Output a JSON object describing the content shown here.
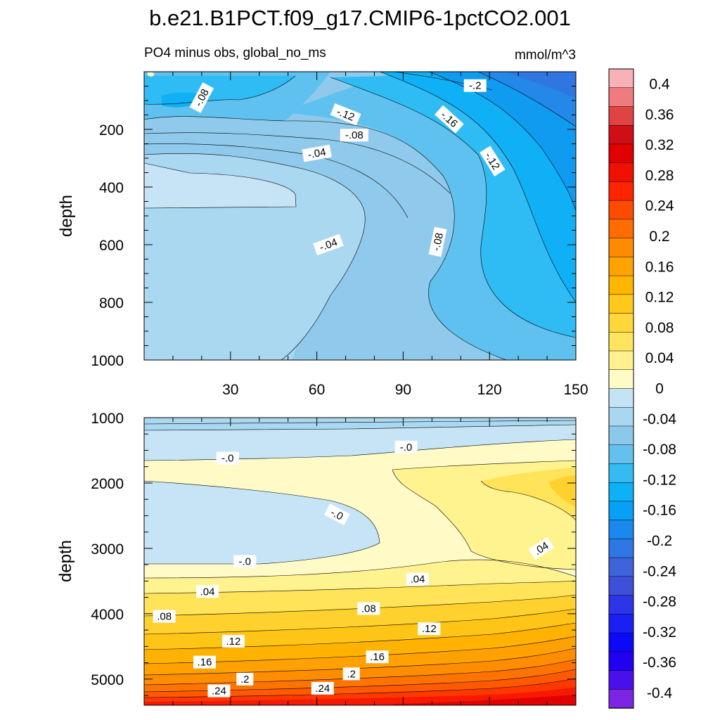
{
  "chart_data": [
    {
      "type": "heatmap",
      "panel": "upper",
      "title": "b.e21.B1PCT.f09_g17.CMIP6-1pctCO2.001",
      "subtitle_left": "PO4 minus obs, global_no_ms",
      "subtitle_right": "mmol/m^3",
      "xlabel": "",
      "ylabel": "depth",
      "xlim": [
        0,
        150
      ],
      "ylim": [
        1000,
        0
      ],
      "xticks": [
        30,
        60,
        90,
        120,
        150
      ],
      "xtick_labels": [
        "30",
        "60",
        "90",
        "120",
        "150"
      ],
      "yticks": [
        200,
        400,
        600,
        800,
        1000
      ],
      "ytick_labels": [
        "200",
        "400",
        "600",
        "800",
        "1000"
      ],
      "contour_labels": [
        {
          "text": "-.08",
          "x": 20,
          "y": 90,
          "rot": -62
        },
        {
          "text": "-.2",
          "x": 115,
          "y": 48,
          "rot": 0
        },
        {
          "text": "-.12",
          "x": 70,
          "y": 148,
          "rot": 22
        },
        {
          "text": "-.16",
          "x": 106,
          "y": 165,
          "rot": 42
        },
        {
          "text": "-.08",
          "x": 73,
          "y": 220,
          "rot": 0
        },
        {
          "text": "-.04",
          "x": 60,
          "y": 283,
          "rot": -10
        },
        {
          "text": "-.12",
          "x": 121,
          "y": 310,
          "rot": 58
        },
        {
          "text": "-.04",
          "x": 64,
          "y": 600,
          "rot": -20
        },
        {
          "text": "-.08",
          "x": 102,
          "y": 590,
          "rot": -78
        }
      ]
    },
    {
      "type": "heatmap",
      "panel": "lower",
      "xlabel": "",
      "ylabel": "depth",
      "xlim": [
        0,
        150
      ],
      "ylim": [
        5400,
        1000
      ],
      "yticks": [
        1000,
        2000,
        3000,
        4000,
        5000
      ],
      "ytick_labels": [
        "1000",
        "2000",
        "3000",
        "4000",
        "5000"
      ],
      "contour_labels": [
        {
          "text": "-.0",
          "x": 29,
          "y": 1620,
          "rot": 0
        },
        {
          "text": "-.0",
          "x": 91,
          "y": 1450,
          "rot": 0
        },
        {
          "text": "-.0",
          "x": 67,
          "y": 2480,
          "rot": 28
        },
        {
          "text": "-.0",
          "x": 35,
          "y": 3200,
          "rot": 0
        },
        {
          "text": ".04",
          "x": 138,
          "y": 3000,
          "rot": -32
        },
        {
          "text": ".04",
          "x": 22,
          "y": 3660,
          "rot": 0
        },
        {
          "text": ".04",
          "x": 95,
          "y": 3470,
          "rot": 0
        },
        {
          "text": ".08",
          "x": 7,
          "y": 4040,
          "rot": 0
        },
        {
          "text": ".08",
          "x": 78,
          "y": 3920,
          "rot": 0
        },
        {
          "text": ".12",
          "x": 31,
          "y": 4420,
          "rot": 0
        },
        {
          "text": ".12",
          "x": 99,
          "y": 4230,
          "rot": 0
        },
        {
          "text": ".16",
          "x": 21,
          "y": 4740,
          "rot": 0
        },
        {
          "text": ".16",
          "x": 81,
          "y": 4660,
          "rot": 0
        },
        {
          "text": ".2",
          "x": 35,
          "y": 5000,
          "rot": 0
        },
        {
          "text": ".2",
          "x": 72,
          "y": 4920,
          "rot": 0
        },
        {
          "text": ".24",
          "x": 26,
          "y": 5180,
          "rot": 0
        },
        {
          "text": ".24",
          "x": 62,
          "y": 5140,
          "rot": 0
        }
      ]
    }
  ],
  "colorbar": {
    "labels": [
      "0.4",
      "0.36",
      "0.32",
      "0.28",
      "0.24",
      "0.2",
      "0.16",
      "0.12",
      "0.08",
      "0.04",
      "0",
      "-0.04",
      "-0.08",
      "-0.12",
      "-0.16",
      "-0.2",
      "-0.24",
      "-0.28",
      "-0.32",
      "-0.36",
      "-0.4"
    ],
    "colors": [
      "#f9b1b8",
      "#ef7b7e",
      "#df4442",
      "#cf0f16",
      "#e00000",
      "#f01000",
      "#ff2400",
      "#ff4b00",
      "#ff6c00",
      "#ff8c00",
      "#ffa300",
      "#ffb600",
      "#ffc81a",
      "#ffd73b",
      "#ffe45e",
      "#fff090",
      "#fffbc5",
      "#c4e4f5",
      "#a8d7f0",
      "#8bc9eb",
      "#66c0ee",
      "#34bbf2",
      "#0db1f6",
      "#08a0f4",
      "#1a88ec",
      "#2f77e4",
      "#3e63da",
      "#3e50d8",
      "#2c36e8",
      "#1a20f4",
      "#0a0af8",
      "#2200f0",
      "#4810ea",
      "#7a26e4"
    ],
    "color_levels": [
      "0.42",
      "0.39",
      "0.37",
      "0.35",
      "0.33",
      "0.31",
      "0.29",
      "0.27",
      "0.25",
      "0.23",
      "0.21",
      "0.19",
      "0.17",
      "0.15",
      "0.13",
      "0.11",
      "0.09",
      "0.07",
      "0.05",
      "0.03",
      "0.01",
      "-0.01",
      "-0.03",
      "-0.05",
      "-0.07",
      "-0.09",
      "-0.11",
      "-0.13",
      "-0.15",
      "-0.17",
      "-0.19",
      "-0.21",
      "-0.23",
      "-0.25"
    ]
  },
  "fill_colors": {
    "neg02": "#c6e4f6",
    "neg06": "#a9d8f0",
    "neg07": "#8fcaec",
    "neg10": "#5fc1ef",
    "neg12": "#2fbbf3",
    "neg14": "#10b0f6",
    "neg16": "#0f9bef",
    "neg18": "#2388e8",
    "neg20": "#2f76e2",
    "neg22": "#3b62d8",
    "pos01": "#fffac6",
    "pos03": "#fff38f",
    "pos05": "#ffe358",
    "pos07": "#ffd12f",
    "pos09": "#ffc516",
    "pos11": "#ffb300",
    "pos13": "#ffa100",
    "pos15": "#ff8d00",
    "pos17": "#ff7300",
    "pos19": "#ff5a00",
    "pos21": "#ff3800",
    "pos23": "#f51a00",
    "pos25": "#e30000",
    "pos27": "#cf0f16"
  }
}
